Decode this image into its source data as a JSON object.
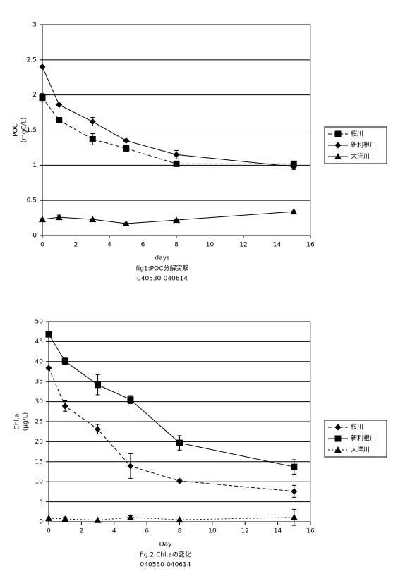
{
  "chart_data": [
    {
      "type": "line",
      "ylabel": [
        "POC",
        "(mgC/L)"
      ],
      "xlabel": "days",
      "caption": [
        "fig1:POC分解実験",
        "040530-040614"
      ],
      "x": [
        0,
        1,
        3,
        5,
        8,
        15
      ],
      "xlim": [
        0,
        16
      ],
      "xticks": [
        0,
        2,
        4,
        6,
        8,
        10,
        12,
        14,
        16
      ],
      "ylim": [
        0,
        3
      ],
      "yticks": [
        0,
        0.5,
        1,
        1.5,
        2,
        2.5,
        3
      ],
      "grid": true,
      "series": [
        {
          "name": "桜川",
          "color": "#000000",
          "dash": "dashed",
          "marker": "square",
          "values": [
            1.96,
            1.64,
            1.37,
            1.24,
            1.02,
            1.02
          ],
          "errors": [
            0.06,
            0.02,
            0.08,
            0.05,
            0.02,
            0.02
          ]
        },
        {
          "name": "新利根川",
          "color": "#000000",
          "dash": "solid",
          "marker": "diamond",
          "values": [
            2.4,
            1.86,
            1.62,
            1.35,
            1.15,
            0.98
          ],
          "errors": [
            0.02,
            0.02,
            0.06,
            0.02,
            0.06,
            0.04
          ]
        },
        {
          "name": "大洋川",
          "color": "#000000",
          "dash": "solid",
          "marker": "triangle",
          "values": [
            0.23,
            0.26,
            0.23,
            0.17,
            0.22,
            0.34
          ],
          "errors": [
            0.01,
            0.03,
            0.01,
            0.01,
            0.01,
            0.01
          ]
        }
      ]
    },
    {
      "type": "line",
      "ylabel": [
        "Chl.a",
        "(μg/L)"
      ],
      "xlabel": "Day",
      "caption": [
        "fig.2:Chl.aの変化",
        "040530-040614"
      ],
      "x": [
        0,
        1,
        3,
        5,
        8,
        15
      ],
      "xlim": [
        0,
        16
      ],
      "xticks": [
        0,
        2,
        4,
        6,
        8,
        10,
        12,
        14,
        16
      ],
      "ylim": [
        0,
        50
      ],
      "yticks": [
        0,
        5,
        10,
        15,
        20,
        25,
        30,
        35,
        40,
        45,
        50
      ],
      "grid": true,
      "series": [
        {
          "name": "桜川",
          "color": "#000000",
          "dash": "dashed",
          "marker": "diamond",
          "values": [
            38.4,
            28.9,
            23.1,
            13.9,
            10.2,
            7.6
          ],
          "errors": [
            0,
            1.3,
            1.2,
            3.1,
            0.3,
            1.5
          ]
        },
        {
          "name": "新利根川",
          "color": "#000000",
          "dash": "solid",
          "marker": "square",
          "values": [
            46.8,
            40.1,
            34.2,
            30.5,
            19.7,
            13.7
          ],
          "errors": [
            0.5,
            0.8,
            2.5,
            1.0,
            1.8,
            1.8
          ]
        },
        {
          "name": "大洋川",
          "color": "#000000",
          "dash": "dotted",
          "marker": "triangle",
          "values": [
            0.9,
            0.7,
            0.4,
            1.1,
            0.5,
            1.1
          ],
          "errors": [
            0,
            0.4,
            0,
            0.4,
            0,
            2.0
          ]
        }
      ]
    }
  ]
}
